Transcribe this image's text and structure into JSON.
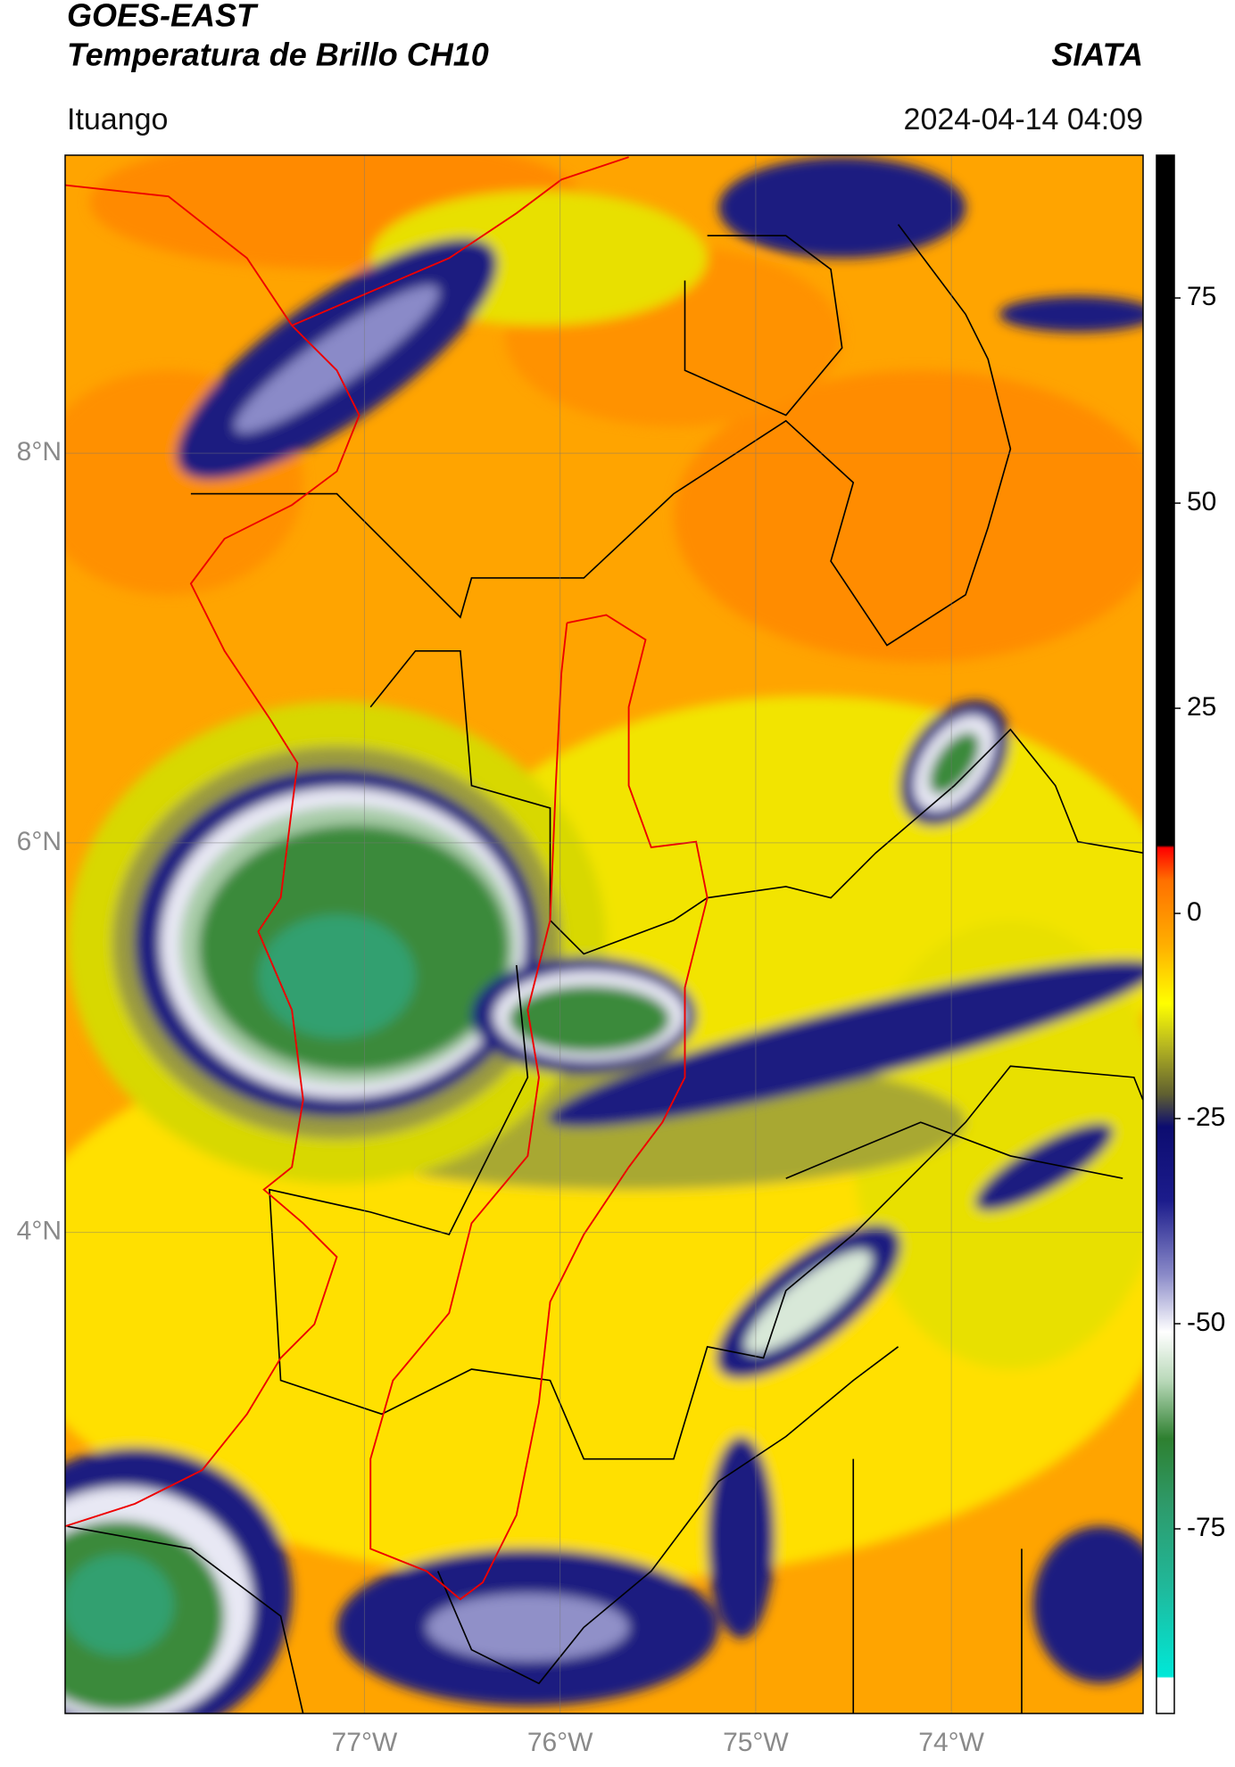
{
  "header": {
    "title": "GOES-EAST",
    "subtitle": "Temperatura de Brillo CH10",
    "source": "SIATA",
    "location": "Ituango",
    "datetime": "2024-04-14 04:09"
  },
  "map": {
    "xlim": [
      -78.53,
      -73.02
    ],
    "ylim": [
      1.53,
      9.53
    ],
    "xticks": [
      {
        "value": -77,
        "label": "77°W"
      },
      {
        "value": -76,
        "label": "76°W"
      },
      {
        "value": -75,
        "label": "75°W"
      },
      {
        "value": -74,
        "label": "74°W"
      }
    ],
    "yticks": [
      {
        "value": 4,
        "label": "4°N"
      },
      {
        "value": 6,
        "label": "6°N"
      },
      {
        "value": 8,
        "label": "8°N"
      }
    ],
    "grid": true
  },
  "colorbar": {
    "lim": [
      -97.5,
      92.4
    ],
    "ticks": [
      -75,
      -50,
      -25,
      0,
      25,
      50,
      75
    ],
    "stops": [
      {
        "value": -97.5,
        "color": "#ffffff"
      },
      {
        "value": -93.2,
        "color": "#ffffff"
      },
      {
        "value": -93,
        "color": "#00e8d8"
      },
      {
        "value": -82,
        "color": "#20b89a"
      },
      {
        "value": -72,
        "color": "#2e9a6a"
      },
      {
        "value": -64,
        "color": "#2e8030"
      },
      {
        "value": -57,
        "color": "#b8d8b8"
      },
      {
        "value": -51,
        "color": "#ffffff"
      },
      {
        "value": -44,
        "color": "#8a8ac8"
      },
      {
        "value": -35,
        "color": "#1c1c8c"
      },
      {
        "value": -26,
        "color": "#0c0c70"
      },
      {
        "value": -22,
        "color": "#606030"
      },
      {
        "value": -16,
        "color": "#b8b820"
      },
      {
        "value": -11,
        "color": "#ffff00"
      },
      {
        "value": -4,
        "color": "#ffb000"
      },
      {
        "value": 4,
        "color": "#ff7000"
      },
      {
        "value": 8,
        "color": "#ff0000"
      },
      {
        "value": 8.3,
        "color": "#000000"
      },
      {
        "value": 92.4,
        "color": "#000000"
      }
    ]
  }
}
